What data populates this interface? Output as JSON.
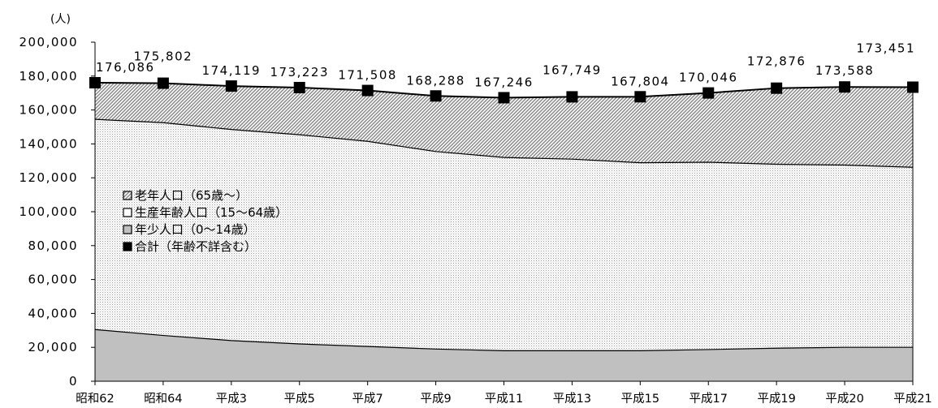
{
  "chart_data": {
    "type": "area",
    "unit": "(人)",
    "categories": [
      "昭和62",
      "昭和64",
      "平成3",
      "平成5",
      "平成7",
      "平成9",
      "平成11",
      "平成13",
      "平成15",
      "平成17",
      "平成19",
      "平成20",
      "平成21"
    ],
    "series": [
      {
        "name": "年少人口（0～14歳）",
        "values": [
          30500,
          27000,
          24000,
          22000,
          20500,
          19000,
          18000,
          18000,
          18000,
          18700,
          19500,
          20000,
          20000
        ]
      },
      {
        "name": "生産年齢人口（15～64歳）",
        "values": [
          124000,
          125500,
          124500,
          123400,
          121000,
          116500,
          114000,
          113000,
          110900,
          110500,
          108500,
          107500,
          106200
        ]
      },
      {
        "name": "老年人口（65歳～）",
        "values": [
          21586,
          23302,
          25619,
          27823,
          30008,
          32788,
          35246,
          36749,
          38904,
          40846,
          44876,
          46088,
          47251
        ]
      },
      {
        "name": "合計（年齢不詳含む）",
        "values": [
          176086,
          175802,
          174119,
          173223,
          171508,
          168288,
          167246,
          167749,
          167804,
          170046,
          172876,
          173588,
          173451
        ]
      }
    ],
    "total_labels": [
      "176,086",
      "175,802",
      "174,119",
      "173,223",
      "171,508",
      "168,288",
      "167,246",
      "167,749",
      "167,804",
      "170,046",
      "172,876",
      "173,588",
      "173,451"
    ],
    "y_ticks": [
      "0",
      "20,000",
      "40,000",
      "60,000",
      "80,000",
      "100,000",
      "120,000",
      "140,000",
      "160,000",
      "180,000",
      "200,000"
    ],
    "ylim": [
      0,
      200000
    ],
    "legend": {
      "placement": "inside-left",
      "items": [
        {
          "label": "老年人口（65歳～）",
          "pattern": "hatch"
        },
        {
          "label": "生産年齢人口（15～64歳）",
          "pattern": "dots"
        },
        {
          "label": "年少人口（0～14歳）",
          "pattern": "gray"
        },
        {
          "label": "合計（年齢不詳含む）",
          "pattern": "black-square"
        }
      ]
    },
    "colors": {
      "young": "#c0c0c0",
      "working": "#f4f4f4",
      "elderly_hatch": "#808080",
      "total_line": "#000000"
    }
  }
}
